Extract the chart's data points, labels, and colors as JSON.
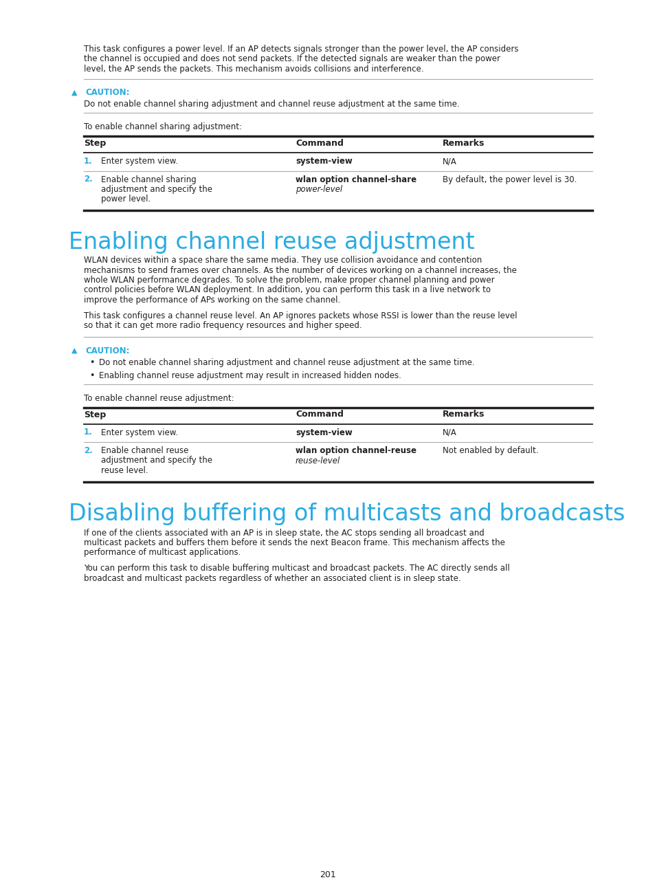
{
  "bg_color": "#ffffff",
  "text_color": "#231f20",
  "cyan_color": "#29abe2",
  "page_number": "201",
  "intro_paragraph": "This task configures a power level. If an AP detects signals stronger than the power level, the AP considers the channel is occupied and does not send packets. If the detected signals are weaker than the power level, the AP sends the packets. This mechanism avoids collisions and interference.",
  "caution1_body": "Do not enable channel sharing adjustment and channel reuse adjustment at the same time.",
  "pre_table1_text": "To enable channel sharing adjustment:",
  "section1_title": "Enabling channel reuse adjustment",
  "section1_para1": "WLAN devices within a space share the same media. They use collision avoidance and contention mechanisms to send frames over channels. As the number of devices working on a channel increases, the whole WLAN performance degrades. To solve the problem, make proper channel planning and power control policies before WLAN deployment. In addition, you can perform this task in a live network to improve the performance of APs working on the same channel.",
  "section1_para2": "This task configures a channel reuse level. An AP ignores packets whose RSSI is lower than the reuse level so that it can get more radio frequency resources and higher speed.",
  "caution2_bullets": [
    "Do not enable channel sharing adjustment and channel reuse adjustment at the same time.",
    "Enabling channel reuse adjustment may result in increased hidden nodes."
  ],
  "pre_table2_text": "To enable channel reuse adjustment:",
  "section2_title": "Disabling buffering of multicasts and broadcasts",
  "section2_para1": "If one of the clients associated with an AP is in sleep state, the AC stops sending all broadcast and multicast packets and buffers them before it sends the next Beacon frame. This mechanism affects the performance of multicast applications.",
  "section2_para2": "You can perform this task to disable buffering multicast and broadcast packets. The AC directly sends all broadcast and multicast packets regardless of whether an associated client is in sleep state."
}
